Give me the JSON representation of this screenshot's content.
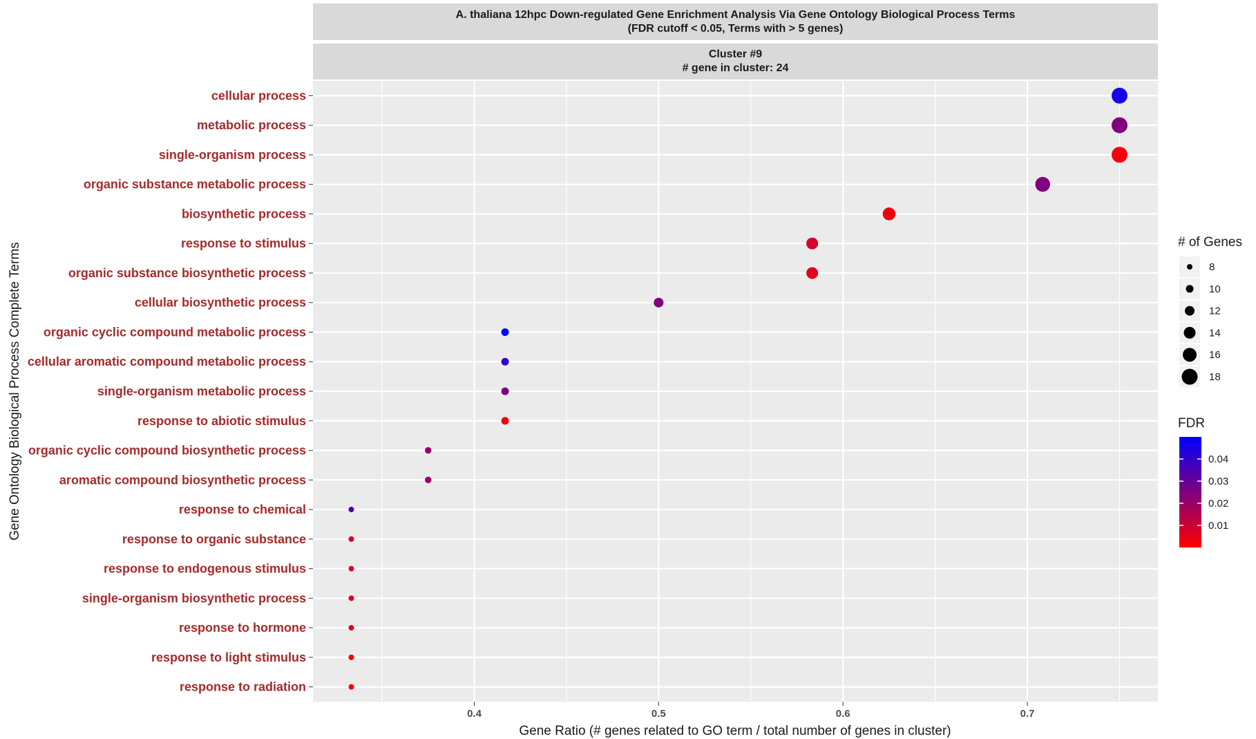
{
  "chart_data": {
    "type": "scatter",
    "title": "A. thaliana 12hpc Down-regulated Gene Enrichment Analysis Via Gene Ontology Biological Process Terms",
    "subtitle": "(FDR cutoff < 0.05, Terms with > 5 genes)",
    "facet_title": "Cluster #9",
    "facet_subtitle": "# gene in cluster: 24",
    "xlabel": "Gene Ratio (# genes related to GO term / total number of genes in cluster)",
    "ylabel": "Gene Ontology Biological Process Complete Terms",
    "xlim": [
      0.3125,
      0.7708
    ],
    "x_ticks": [
      0.4,
      0.5,
      0.6,
      0.7
    ],
    "x_tick_labels": [
      "0.4",
      "0.5",
      "0.6",
      "0.7"
    ],
    "grid": true,
    "label_color": "#a52a2a",
    "points": [
      {
        "term": "cellular process",
        "x": 0.75,
        "genes": 18,
        "fdr": 0.045
      },
      {
        "term": "metabolic process",
        "x": 0.75,
        "genes": 18,
        "fdr": 0.025
      },
      {
        "term": "single-organism process",
        "x": 0.75,
        "genes": 18,
        "fdr": 0.002
      },
      {
        "term": "organic substance metabolic process",
        "x": 0.7083,
        "genes": 17,
        "fdr": 0.025
      },
      {
        "term": "biosynthetic process",
        "x": 0.625,
        "genes": 15,
        "fdr": 0.003
      },
      {
        "term": "response to stimulus",
        "x": 0.5833,
        "genes": 14,
        "fdr": 0.008
      },
      {
        "term": "organic substance biosynthetic process",
        "x": 0.5833,
        "genes": 14,
        "fdr": 0.006
      },
      {
        "term": "cellular biosynthetic process",
        "x": 0.5,
        "genes": 12,
        "fdr": 0.025
      },
      {
        "term": "organic cyclic compound metabolic process",
        "x": 0.4167,
        "genes": 10,
        "fdr": 0.05
      },
      {
        "term": "cellular aromatic compound metabolic process",
        "x": 0.4167,
        "genes": 10,
        "fdr": 0.04
      },
      {
        "term": "single-organism metabolic process",
        "x": 0.4167,
        "genes": 10,
        "fdr": 0.025
      },
      {
        "term": "response to abiotic stimulus",
        "x": 0.4167,
        "genes": 10,
        "fdr": 0.003
      },
      {
        "term": "organic cyclic compound biosynthetic process",
        "x": 0.375,
        "genes": 9,
        "fdr": 0.02
      },
      {
        "term": "aromatic compound biosynthetic process",
        "x": 0.375,
        "genes": 9,
        "fdr": 0.02
      },
      {
        "term": "response to chemical",
        "x": 0.3333,
        "genes": 8,
        "fdr": 0.035
      },
      {
        "term": "response to organic substance",
        "x": 0.3333,
        "genes": 8,
        "fdr": 0.008
      },
      {
        "term": "response to endogenous stimulus",
        "x": 0.3333,
        "genes": 8,
        "fdr": 0.006
      },
      {
        "term": "single-organism biosynthetic process",
        "x": 0.3333,
        "genes": 8,
        "fdr": 0.006
      },
      {
        "term": "response to hormone",
        "x": 0.3333,
        "genes": 8,
        "fdr": 0.006
      },
      {
        "term": "response to light stimulus",
        "x": 0.3333,
        "genes": 8,
        "fdr": 0.002
      },
      {
        "term": "response to radiation",
        "x": 0.3333,
        "genes": 8,
        "fdr": 0.002
      }
    ],
    "size_legend": {
      "title": "# of Genes",
      "values": [
        8,
        10,
        12,
        14,
        16,
        18
      ]
    },
    "color_legend": {
      "title": "FDR",
      "low_color": "#ff0000",
      "high_color": "#0000ff",
      "range": [
        0,
        0.05
      ],
      "ticks": [
        0.01,
        0.02,
        0.03,
        0.04
      ],
      "tick_labels": [
        "0.01",
        "0.02",
        "0.03",
        "0.04"
      ]
    }
  }
}
